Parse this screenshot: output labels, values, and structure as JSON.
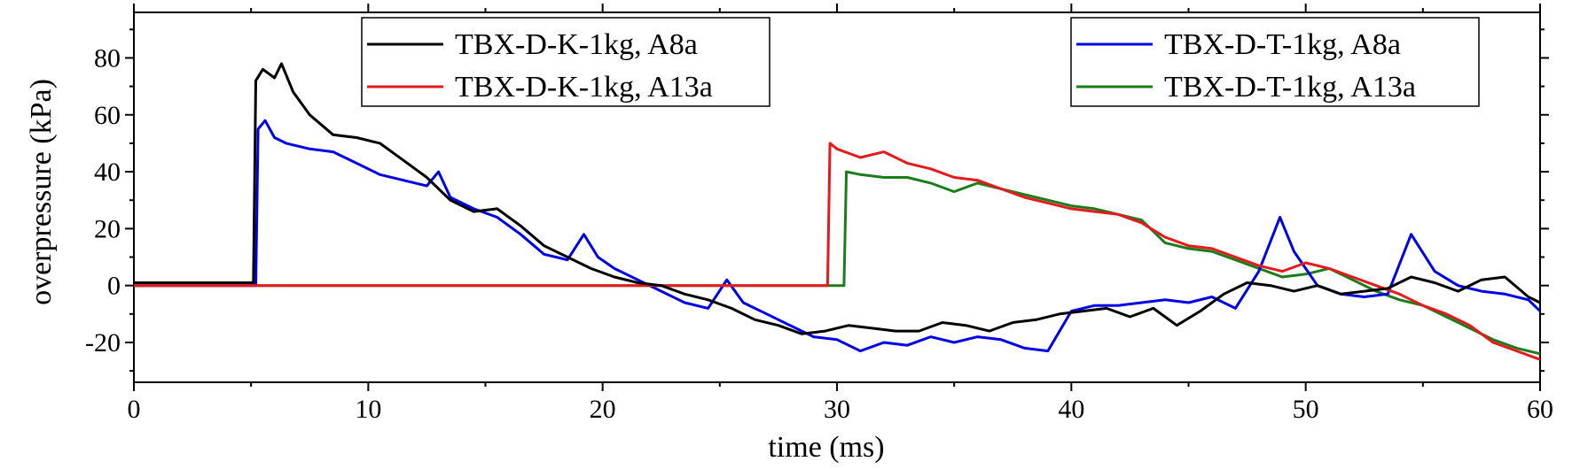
{
  "chart_data": {
    "type": "line",
    "xlabel": "time (ms)",
    "ylabel": "overpressure (kPa)",
    "xlim": [
      0,
      60
    ],
    "ylim": [
      -34,
      96
    ],
    "xticks": [
      0,
      10,
      20,
      30,
      40,
      50,
      60
    ],
    "yticks": [
      -20,
      0,
      20,
      40,
      60,
      80
    ],
    "grid": false,
    "legends": [
      {
        "placement": "top-center-left",
        "entries": [
          "TBX-D-K-1kg, A8a",
          "TBX-D-K-1kg, A13a"
        ]
      },
      {
        "placement": "top-right",
        "entries": [
          "TBX-D-T-1kg, A8a",
          "TBX-D-T-1kg, A13a"
        ]
      }
    ],
    "series": [
      {
        "name": "TBX-D-K-1kg, A8a",
        "color": "#000000",
        "x": [
          0,
          2,
          4,
          5.1,
          5.2,
          5.5,
          6,
          6.3,
          6.8,
          7.5,
          8.5,
          9.5,
          10.5,
          11.5,
          12.5,
          13.5,
          14.5,
          15.5,
          16.5,
          17.5,
          18.5,
          19.5,
          20.5,
          21.5,
          22.5,
          23.5,
          24.5,
          25.5,
          26.5,
          27.5,
          28.5,
          29.5,
          30.5,
          31.5,
          32.5,
          33.5,
          34.5,
          35.5,
          36.5,
          37.5,
          38.5,
          39.5,
          40.5,
          41.5,
          42.5,
          43.5,
          44.5,
          45.5,
          46.5,
          47.5,
          48.5,
          49.5,
          50.5,
          51.5,
          52.5,
          53.5,
          54.5,
          55.5,
          56.5,
          57.5,
          58.5,
          59.5,
          60
        ],
        "y": [
          1,
          1,
          1,
          1,
          72,
          76,
          73,
          78,
          68,
          60,
          53,
          52,
          50,
          44,
          38,
          30,
          26,
          27,
          21,
          14,
          10,
          6,
          3,
          1,
          0,
          -3,
          -5,
          -8,
          -12,
          -14,
          -17,
          -16,
          -14,
          -15,
          -16,
          -16,
          -13,
          -14,
          -16,
          -13,
          -12,
          -10,
          -9,
          -8,
          -11,
          -8,
          -14,
          -9,
          -3,
          1,
          0,
          -2,
          0,
          -3,
          -2,
          -1,
          3,
          1,
          -2,
          2,
          3,
          -4,
          -6
        ]
      },
      {
        "name": "TBX-D-K-1kg, A13a",
        "color": "#e41a1c",
        "x": [
          0,
          5,
          10,
          15,
          20,
          25,
          29.6,
          29.7,
          30,
          31,
          32,
          33,
          34,
          35,
          36,
          37,
          38,
          39,
          40,
          41,
          42,
          43,
          44,
          45,
          46,
          47,
          48,
          49,
          50,
          51,
          52,
          53,
          54,
          55,
          56,
          57,
          58,
          59,
          60
        ],
        "y": [
          0,
          0,
          0,
          0,
          0,
          0,
          0,
          50,
          48,
          45,
          47,
          43,
          41,
          38,
          37,
          34,
          31,
          29,
          27,
          26,
          25,
          22,
          17,
          14,
          13,
          10,
          7,
          5,
          8,
          6,
          3,
          0,
          -3,
          -7,
          -10,
          -14,
          -20,
          -23,
          -26
        ]
      },
      {
        "name": "TBX-D-T-1kg, A8a",
        "color": "#0000e6",
        "x": [
          0,
          2,
          4,
          5.2,
          5.3,
          5.6,
          6,
          6.5,
          7.5,
          8.5,
          9.5,
          10.5,
          11.5,
          12.5,
          13,
          13.5,
          14.5,
          15.5,
          16.5,
          17.5,
          18.5,
          19.2,
          19.8,
          20.5,
          21.5,
          22.5,
          23.5,
          24.5,
          25.3,
          26,
          27,
          28,
          29,
          30,
          31,
          32,
          33,
          34,
          35,
          36,
          37,
          38,
          39,
          40,
          41,
          42,
          43,
          44,
          45,
          46,
          47,
          48,
          48.9,
          49.5,
          50.5,
          51.5,
          52.5,
          53.5,
          54.5,
          55.5,
          56.5,
          57.5,
          58.5,
          59.5,
          60
        ],
        "y": [
          0,
          0,
          0,
          0,
          55,
          58,
          52,
          50,
          48,
          47,
          43,
          39,
          37,
          35,
          40,
          31,
          27,
          24,
          18,
          11,
          9,
          18,
          10,
          6,
          2,
          -2,
          -6,
          -8,
          2,
          -6,
          -10,
          -14,
          -18,
          -19,
          -23,
          -20,
          -21,
          -18,
          -20,
          -18,
          -19,
          -22,
          -23,
          -9,
          -7,
          -7,
          -6,
          -5,
          -6,
          -4,
          -8,
          5,
          24,
          12,
          0,
          -3,
          -4,
          -3,
          18,
          5,
          0,
          -2,
          -3,
          -5,
          -9
        ]
      },
      {
        "name": "TBX-D-T-1kg, A13a",
        "color": "#1a7d1a",
        "x": [
          0,
          5,
          10,
          15,
          20,
          25,
          30.3,
          30.4,
          31,
          32,
          33,
          34,
          35,
          36,
          37,
          38,
          39,
          40,
          41,
          42,
          43,
          44,
          45,
          46,
          47,
          48,
          49,
          50,
          51,
          52,
          53,
          54,
          55,
          56,
          57,
          58,
          59,
          60
        ],
        "y": [
          0,
          0,
          0,
          0,
          0,
          0,
          0,
          40,
          39,
          38,
          38,
          36,
          33,
          36,
          34,
          32,
          30,
          28,
          27,
          25,
          23,
          15,
          13,
          12,
          9,
          6,
          3,
          4,
          6,
          2,
          -2,
          -5,
          -7,
          -11,
          -15,
          -19,
          -22,
          -24
        ]
      }
    ]
  }
}
